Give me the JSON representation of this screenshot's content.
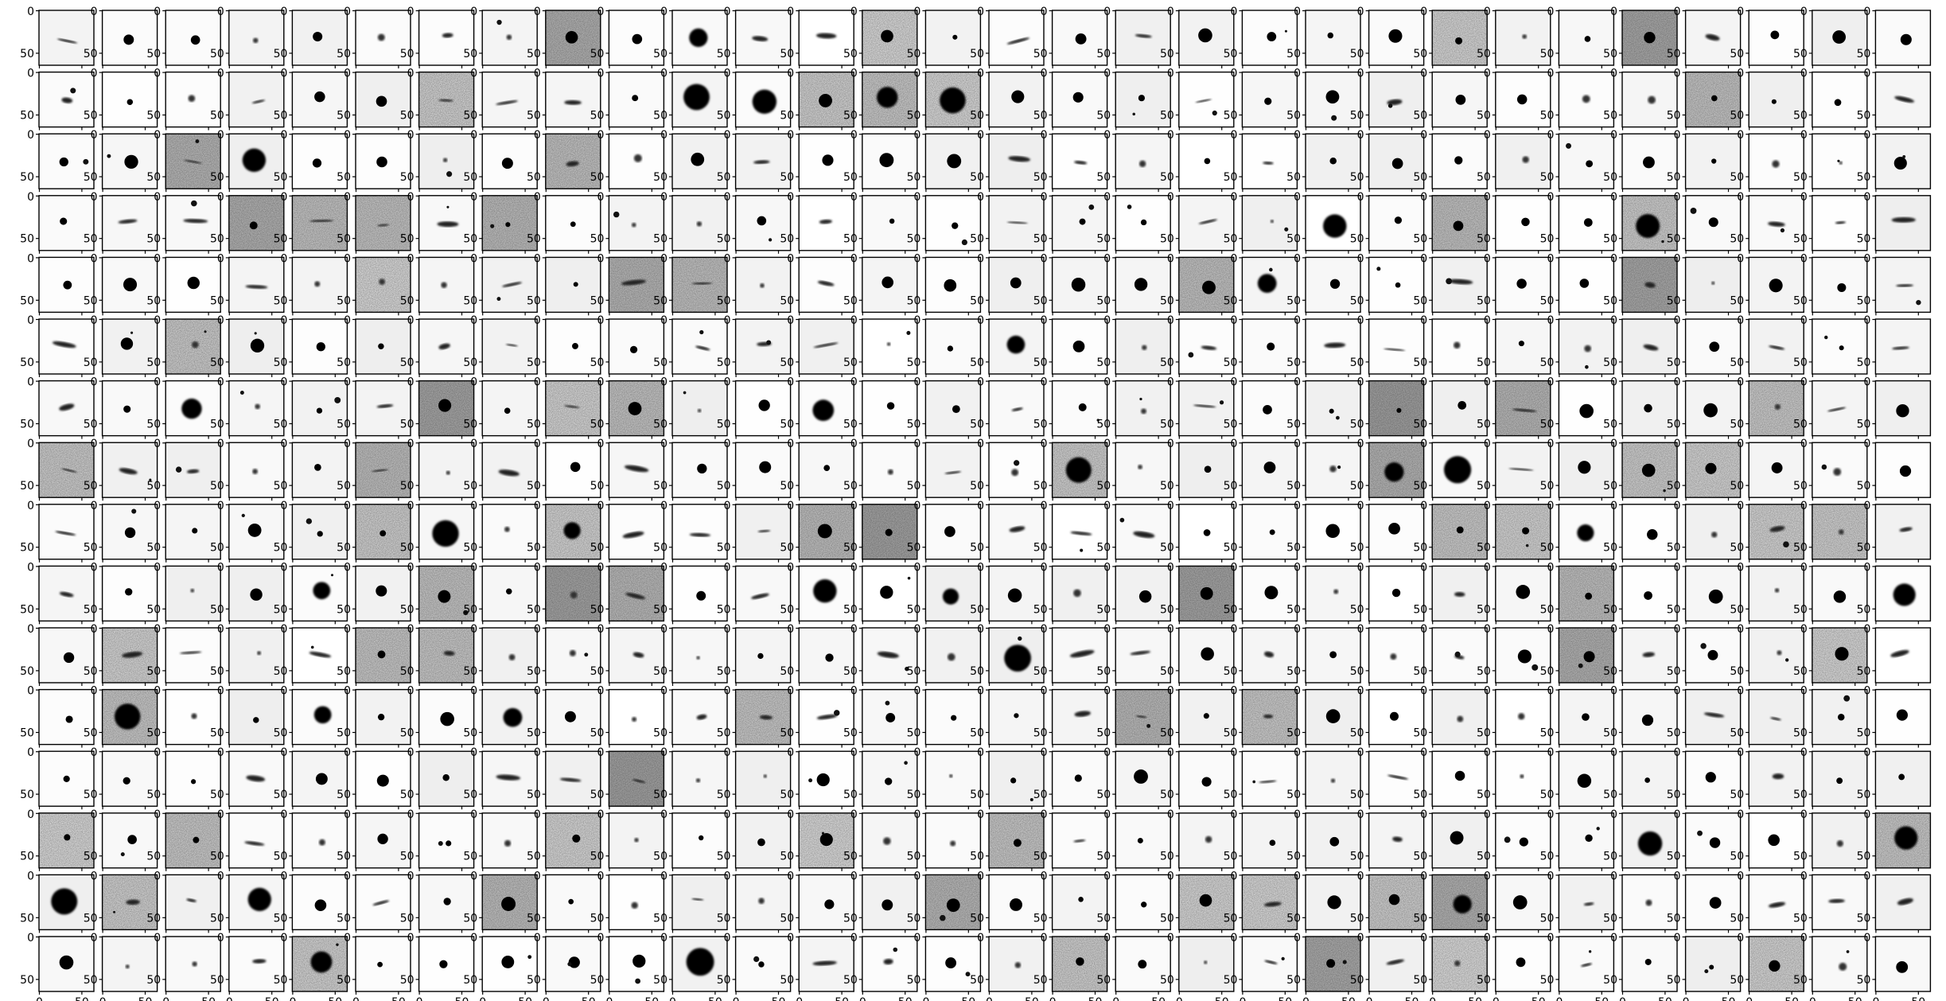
{
  "figure": {
    "rows": 16,
    "cols": 30,
    "content": "grid of grayscale astronomical source cutouts",
    "x_tick_labels": [
      "0",
      "50"
    ],
    "y_tick_labels": [
      "0",
      "50"
    ],
    "colormap": "gray_r",
    "background": "#ffffff"
  }
}
